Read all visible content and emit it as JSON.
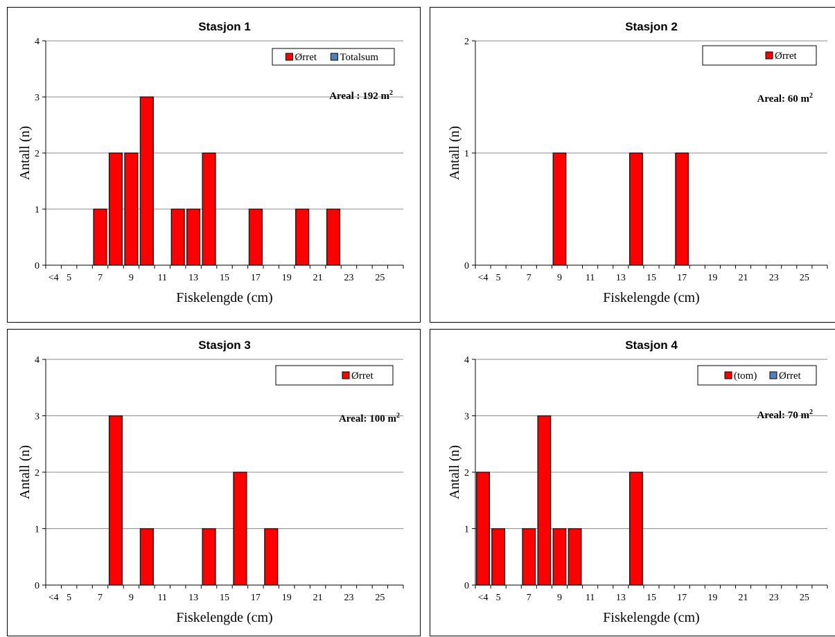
{
  "chart_data": [
    {
      "type": "bar",
      "title": "Stasjon 1",
      "xlabel": "Fiskelengde (cm)",
      "ylabel": "Antall (n)",
      "ylim": [
        0,
        4
      ],
      "yticks": [
        "0",
        "1",
        "2",
        "3",
        "4"
      ],
      "categories": [
        "<4",
        "5",
        "6",
        "7",
        "8",
        "9",
        "10",
        "11",
        "12",
        "13",
        "14",
        "15",
        "16",
        "17",
        "18",
        "19",
        "20",
        "21",
        "22",
        "23",
        "24",
        "25",
        "26"
      ],
      "x_tick_labels": [
        "<4",
        "5",
        "7",
        "9",
        "11",
        "13",
        "15",
        "17",
        "19",
        "21",
        "23",
        "25"
      ],
      "x_tick_categories": [
        "<4",
        "5",
        "7",
        "9",
        "11",
        "13",
        "15",
        "17",
        "19",
        "21",
        "23",
        "25"
      ],
      "series": [
        {
          "name": "Ørret",
          "color": "#ff0000",
          "values": [
            0,
            0,
            0,
            1,
            2,
            2,
            3,
            0,
            1,
            1,
            2,
            0,
            0,
            1,
            0,
            0,
            1,
            0,
            1,
            0,
            0,
            0,
            0
          ]
        }
      ],
      "legend": [
        "Ørret",
        "Totalsum"
      ],
      "legend_colors": [
        "#ff0000",
        "#4f81bd"
      ],
      "legend_placement": "top-right",
      "annotation": {
        "text": "Areal : 192 m",
        "sup": "2"
      },
      "grid": true
    },
    {
      "type": "bar",
      "title": "Stasjon 2",
      "xlabel": "Fiskelengde (cm)",
      "ylabel": "Antall (n)",
      "ylim": [
        0,
        2
      ],
      "yticks": [
        "0",
        "1",
        "2"
      ],
      "categories": [
        "<4",
        "5",
        "6",
        "7",
        "8",
        "9",
        "10",
        "11",
        "12",
        "13",
        "14",
        "15",
        "16",
        "17",
        "18",
        "19",
        "20",
        "21",
        "22",
        "23",
        "24",
        "25",
        "26"
      ],
      "x_tick_labels": [
        "<4",
        "5",
        "7",
        "9",
        "11",
        "13",
        "15",
        "17",
        "19",
        "21",
        "23",
        "25"
      ],
      "x_tick_categories": [
        "<4",
        "5",
        "7",
        "9",
        "11",
        "13",
        "15",
        "17",
        "19",
        "21",
        "23",
        "25"
      ],
      "series": [
        {
          "name": "Ørret",
          "color": "#ff0000",
          "values": [
            0,
            0,
            0,
            0,
            0,
            1,
            0,
            0,
            0,
            0,
            1,
            0,
            0,
            1,
            0,
            0,
            0,
            0,
            0,
            0,
            0,
            0,
            0
          ]
        }
      ],
      "legend": [
        "Ørret"
      ],
      "legend_colors": [
        "#ff0000"
      ],
      "legend_placement": "top-right",
      "annotation": {
        "text": "Areal: 60 m",
        "sup": "2"
      },
      "grid": true
    },
    {
      "type": "bar",
      "title": "Stasjon 3",
      "xlabel": "Fiskelengde (cm)",
      "ylabel": "Antall (n)",
      "ylim": [
        0,
        4
      ],
      "yticks": [
        "0",
        "1",
        "2",
        "3",
        "4"
      ],
      "categories": [
        "<4",
        "5",
        "6",
        "7",
        "8",
        "9",
        "10",
        "11",
        "12",
        "13",
        "14",
        "15",
        "16",
        "17",
        "18",
        "19",
        "20",
        "21",
        "22",
        "23",
        "24",
        "25",
        "26"
      ],
      "x_tick_labels": [
        "<4",
        "5",
        "7",
        "9",
        "11",
        "13",
        "15",
        "17",
        "19",
        "21",
        "23",
        "25"
      ],
      "x_tick_categories": [
        "<4",
        "5",
        "7",
        "9",
        "11",
        "13",
        "15",
        "17",
        "19",
        "21",
        "23",
        "25"
      ],
      "series": [
        {
          "name": "Ørret",
          "color": "#ff0000",
          "values": [
            0,
            0,
            0,
            0,
            3,
            0,
            1,
            0,
            0,
            0,
            1,
            0,
            2,
            0,
            1,
            0,
            0,
            0,
            0,
            0,
            0,
            0,
            0
          ]
        }
      ],
      "legend": [
        "Ørret"
      ],
      "legend_colors": [
        "#ff0000"
      ],
      "legend_placement": "top-right",
      "annotation": {
        "text": "Areal: 100 m",
        "sup": "2"
      },
      "grid": true
    },
    {
      "type": "bar",
      "title": "Stasjon 4",
      "xlabel": "Fiskelengde (cm)",
      "ylabel": "Antall (n)",
      "ylim": [
        0,
        4
      ],
      "yticks": [
        "0",
        "1",
        "2",
        "3",
        "4"
      ],
      "categories": [
        "<4",
        "5",
        "6",
        "7",
        "8",
        "9",
        "10",
        "11",
        "12",
        "13",
        "14",
        "15",
        "16",
        "17",
        "18",
        "19",
        "20",
        "21",
        "22",
        "23",
        "24",
        "25",
        "26"
      ],
      "x_tick_labels": [
        "<4",
        "5",
        "7",
        "9",
        "11",
        "13",
        "15",
        "17",
        "19",
        "21",
        "23",
        "25"
      ],
      "x_tick_categories": [
        "<4",
        "5",
        "7",
        "9",
        "11",
        "13",
        "15",
        "17",
        "19",
        "21",
        "23",
        "25"
      ],
      "series": [
        {
          "name": "(tom)",
          "color": "#ff0000",
          "values": [
            2,
            1,
            0,
            1,
            3,
            1,
            1,
            0,
            0,
            0,
            2,
            0,
            0,
            0,
            0,
            0,
            0,
            0,
            0,
            0,
            0,
            0,
            0
          ]
        }
      ],
      "legend": [
        "(tom)",
        "Ørret"
      ],
      "legend_colors": [
        "#ff0000",
        "#4f81bd"
      ],
      "legend_placement": "top-right",
      "annotation": {
        "text": "Areal: 70 m",
        "sup": "2"
      },
      "grid": true
    }
  ]
}
